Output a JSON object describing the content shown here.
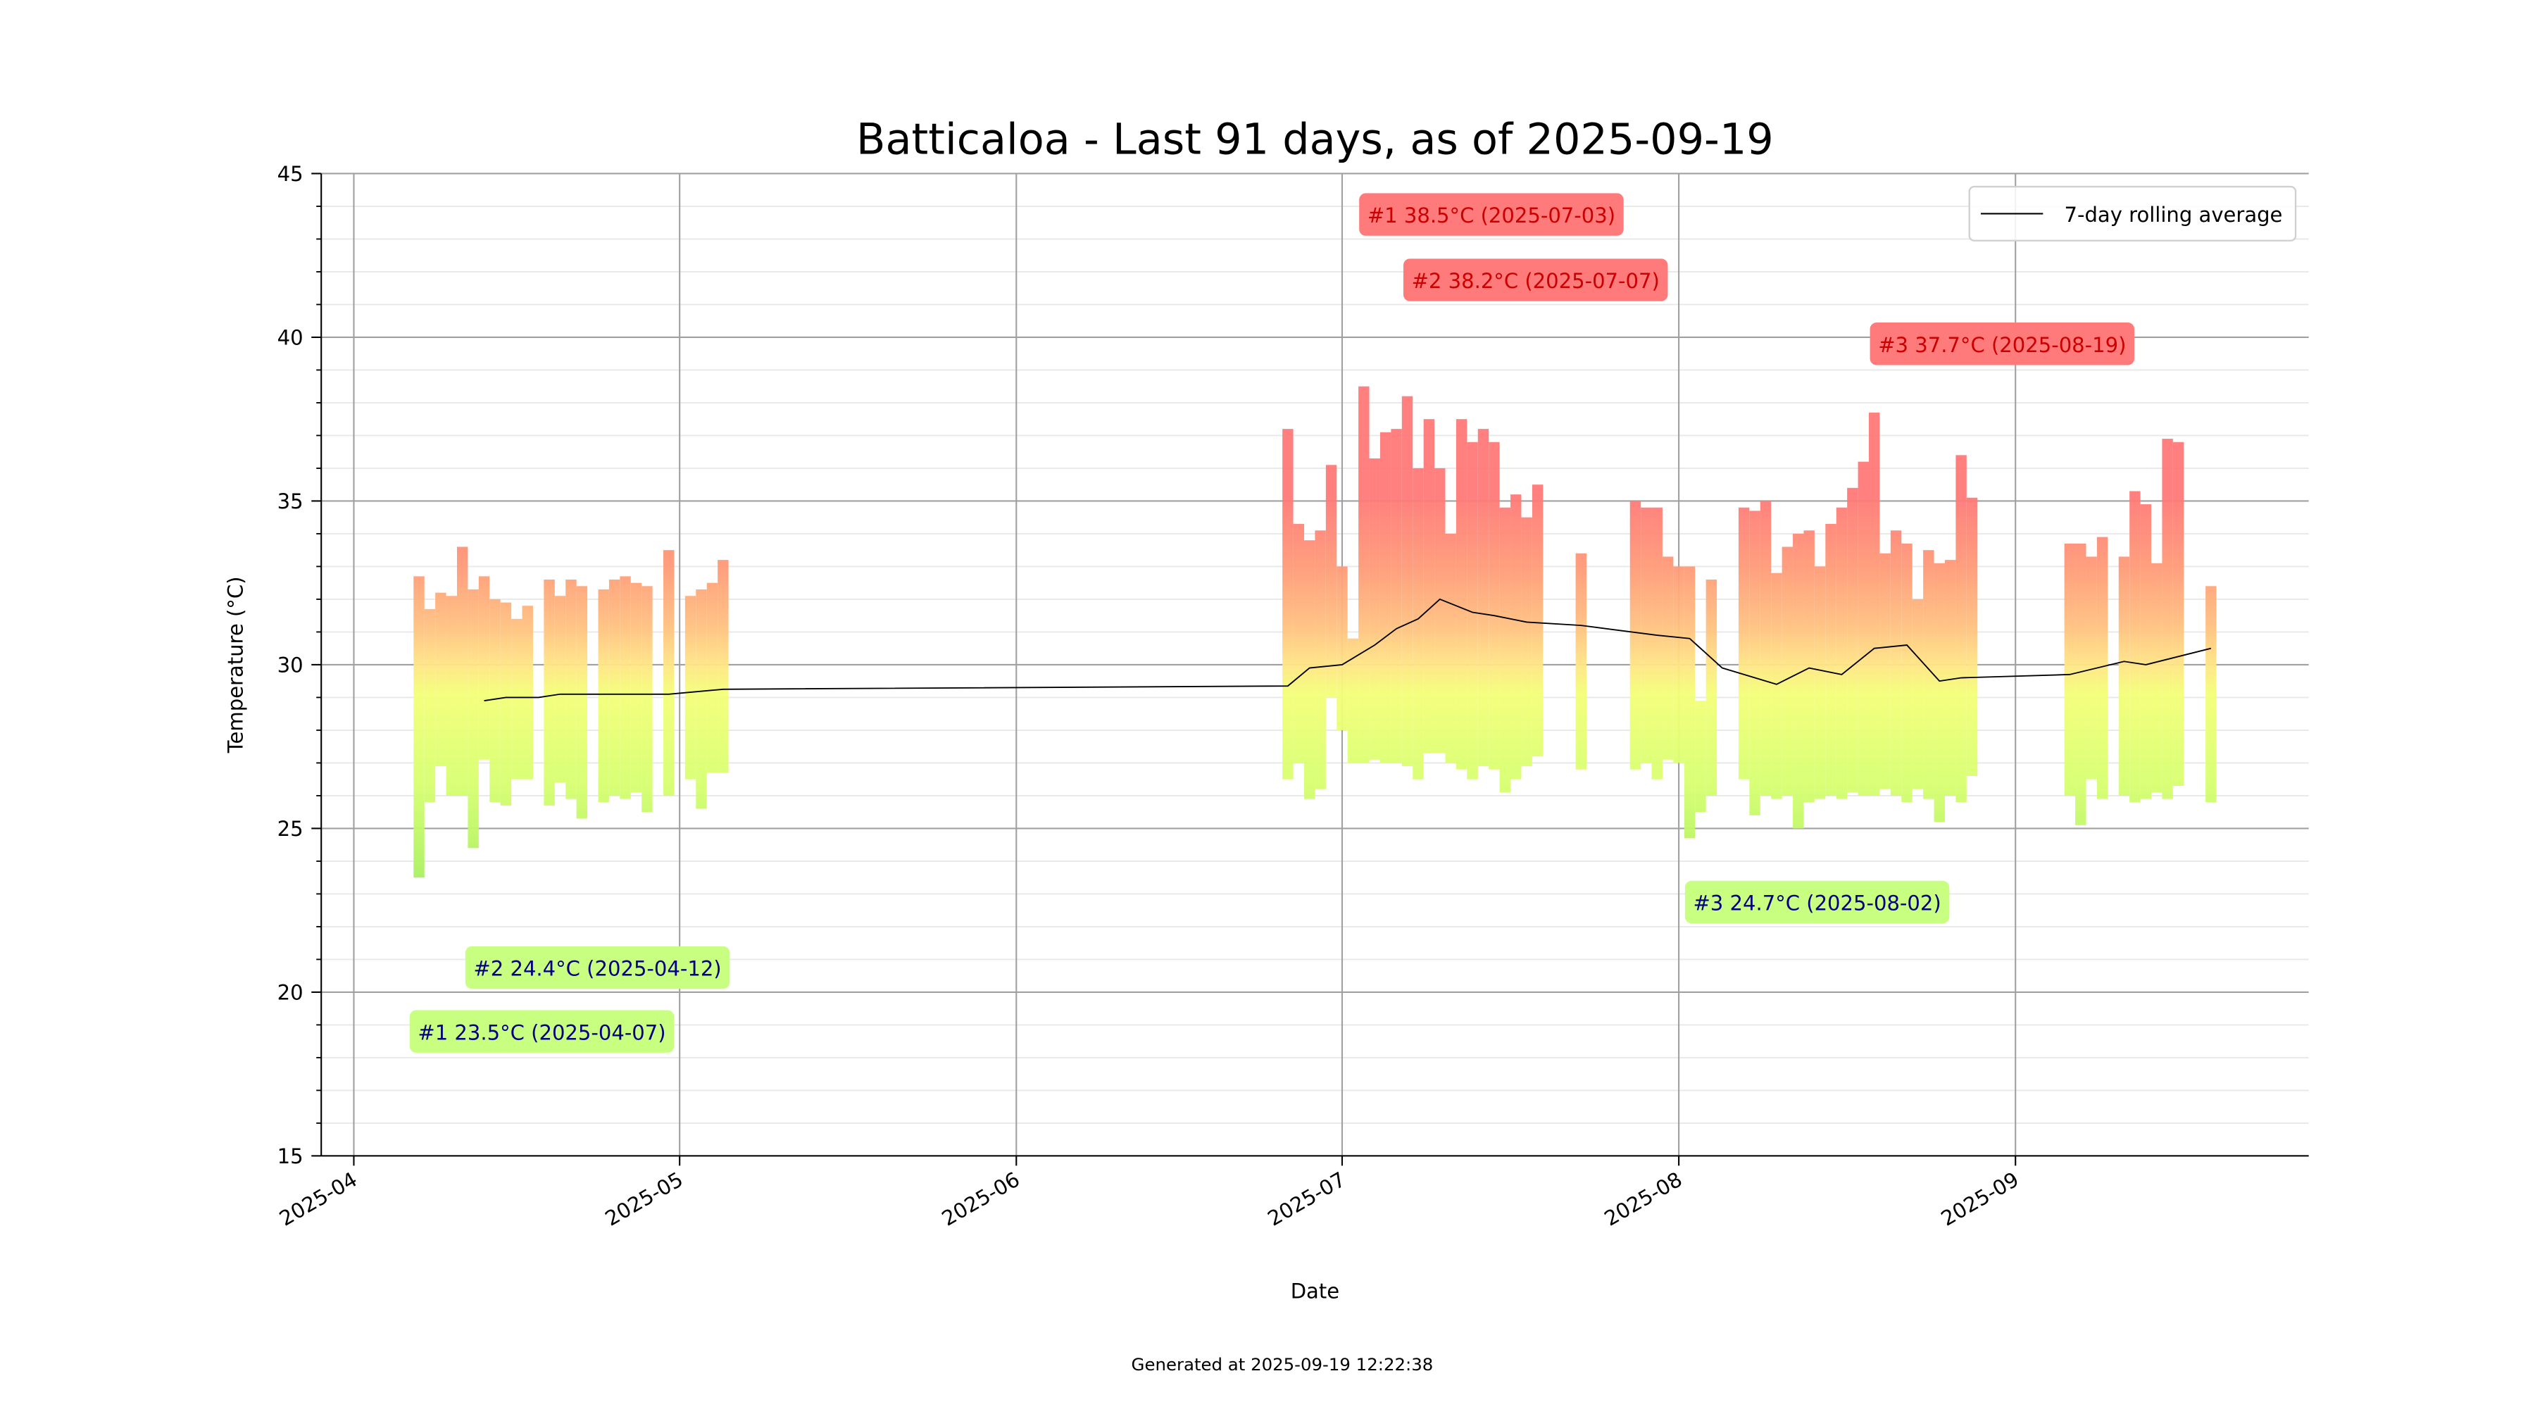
{
  "chart_data": {
    "type": "range_bar",
    "title": "Batticaloa - Last 91 days, as of 2025-09-19",
    "x_label": "Date",
    "y_label": "Temperature (°C)",
    "footer": "Generated at 2025-09-19 12:22:38",
    "x": [
      "2025-04-07",
      "2025-04-08",
      "2025-04-09",
      "2025-04-10",
      "2025-04-11",
      "2025-04-12",
      "2025-04-13",
      "2025-04-14",
      "2025-04-15",
      "2025-04-16",
      "2025-04-17",
      "2025-04-19",
      "2025-04-20",
      "2025-04-21",
      "2025-04-22",
      "2025-04-24",
      "2025-04-25",
      "2025-04-26",
      "2025-04-27",
      "2025-04-28",
      "2025-04-30",
      "2025-05-02",
      "2025-05-03",
      "2025-05-04",
      "2025-05-05",
      "2025-06-26",
      "2025-06-27",
      "2025-06-28",
      "2025-06-29",
      "2025-06-30",
      "2025-07-01",
      "2025-07-02",
      "2025-07-03",
      "2025-07-04",
      "2025-07-05",
      "2025-07-06",
      "2025-07-07",
      "2025-07-08",
      "2025-07-09",
      "2025-07-10",
      "2025-07-11",
      "2025-07-12",
      "2025-07-13",
      "2025-07-14",
      "2025-07-15",
      "2025-07-16",
      "2025-07-17",
      "2025-07-18",
      "2025-07-19",
      "2025-07-23",
      "2025-07-28",
      "2025-07-29",
      "2025-07-30",
      "2025-07-31",
      "2025-08-01",
      "2025-08-02",
      "2025-08-03",
      "2025-08-04",
      "2025-08-07",
      "2025-08-08",
      "2025-08-09",
      "2025-08-10",
      "2025-08-11",
      "2025-08-12",
      "2025-08-13",
      "2025-08-14",
      "2025-08-15",
      "2025-08-16",
      "2025-08-17",
      "2025-08-18",
      "2025-08-19",
      "2025-08-20",
      "2025-08-21",
      "2025-08-22",
      "2025-08-23",
      "2025-08-24",
      "2025-08-25",
      "2025-08-26",
      "2025-08-27",
      "2025-08-28",
      "2025-09-06",
      "2025-09-07",
      "2025-09-08",
      "2025-09-09",
      "2025-09-11",
      "2025-09-12",
      "2025-09-13",
      "2025-09-14",
      "2025-09-15",
      "2025-09-16",
      "2025-09-19"
    ],
    "max_values": [
      32.7,
      31.7,
      32.2,
      32.1,
      33.6,
      32.3,
      32.7,
      32.0,
      31.9,
      31.4,
      31.8,
      32.6,
      32.1,
      32.6,
      32.4,
      32.3,
      32.6,
      32.7,
      32.5,
      32.4,
      33.5,
      32.1,
      32.3,
      32.5,
      33.2,
      37.2,
      34.3,
      33.8,
      34.1,
      36.1,
      33.0,
      30.8,
      38.5,
      36.3,
      37.1,
      37.2,
      38.2,
      36.0,
      37.5,
      36.0,
      34.0,
      37.5,
      36.8,
      37.2,
      36.8,
      34.8,
      35.2,
      34.5,
      35.5,
      33.4,
      35.0,
      34.8,
      34.8,
      33.3,
      33.0,
      33.0,
      28.9,
      32.6,
      34.8,
      34.7,
      35.0,
      32.8,
      33.6,
      34.0,
      34.1,
      33.0,
      34.3,
      34.8,
      35.4,
      36.2,
      37.7,
      33.4,
      34.1,
      33.7,
      32.0,
      33.5,
      33.1,
      33.2,
      36.4,
      35.1,
      33.7,
      33.7,
      33.3,
      33.9,
      33.3,
      35.3,
      34.9,
      33.1,
      36.9,
      36.8,
      32.4
    ],
    "min_values": [
      23.5,
      25.8,
      26.9,
      26.0,
      26.0,
      24.4,
      27.1,
      25.8,
      25.7,
      26.5,
      26.5,
      25.7,
      26.4,
      25.9,
      25.3,
      25.8,
      26.0,
      25.9,
      26.1,
      25.5,
      26.0,
      26.5,
      25.6,
      26.7,
      26.7,
      26.5,
      27.0,
      25.9,
      26.2,
      29.0,
      28.0,
      27.0,
      27.0,
      27.1,
      27.0,
      27.0,
      26.9,
      26.5,
      27.3,
      27.3,
      27.0,
      26.8,
      26.5,
      26.9,
      26.8,
      26.1,
      26.5,
      26.9,
      27.2,
      26.8,
      26.8,
      27.0,
      26.5,
      27.1,
      27.0,
      24.7,
      25.5,
      26.0,
      26.5,
      25.4,
      26.0,
      25.9,
      26.0,
      25.0,
      25.8,
      25.9,
      26.0,
      25.9,
      26.1,
      26.0,
      26.0,
      26.2,
      26.0,
      25.8,
      26.2,
      25.9,
      25.2,
      26.0,
      25.8,
      26.6,
      26.0,
      25.1,
      26.5,
      25.9,
      26.0,
      25.8,
      25.9,
      26.1,
      25.9,
      26.3,
      25.8
    ],
    "rolling": {
      "name": "7-day rolling average",
      "color": "#000000",
      "x": [
        "2025-04-13",
        "2025-04-15",
        "2025-04-18",
        "2025-04-20",
        "2025-04-25",
        "2025-04-30",
        "2025-05-05",
        "2025-06-26",
        "2025-06-28",
        "2025-07-01",
        "2025-07-04",
        "2025-07-06",
        "2025-07-08",
        "2025-07-10",
        "2025-07-13",
        "2025-07-15",
        "2025-07-18",
        "2025-07-23",
        "2025-07-30",
        "2025-08-02",
        "2025-08-05",
        "2025-08-10",
        "2025-08-13",
        "2025-08-16",
        "2025-08-19",
        "2025-08-22",
        "2025-08-25",
        "2025-08-27",
        "2025-09-06",
        "2025-09-11",
        "2025-09-13",
        "2025-09-19"
      ],
      "values": [
        28.9,
        29.0,
        29.0,
        29.1,
        29.1,
        29.1,
        29.25,
        29.35,
        29.9,
        30.0,
        30.6,
        31.1,
        31.4,
        32.0,
        31.6,
        31.5,
        31.3,
        31.2,
        30.9,
        30.8,
        29.9,
        29.4,
        29.9,
        29.7,
        30.5,
        30.6,
        29.5,
        29.6,
        29.7,
        30.1,
        30.0,
        30.5
      ]
    },
    "max_labels": [
      "#1 38.5°C (2025-07-03)",
      "#2 38.2°C (2025-07-07)",
      "#3 37.7°C (2025-08-19)"
    ],
    "min_labels": [
      "#1 23.5°C (2025-04-07)",
      "#2 24.4°C (2025-04-12)",
      "#3 24.7°C (2025-08-02)"
    ],
    "xlim": [
      "2025-03-29",
      "2025-09-28"
    ],
    "xticks": [
      {
        "value": "2025-04-01",
        "label": "2025-04"
      },
      {
        "value": "2025-05-01",
        "label": "2025-05"
      },
      {
        "value": "2025-06-01",
        "label": "2025-06"
      },
      {
        "value": "2025-07-01",
        "label": "2025-07"
      },
      {
        "value": "2025-08-01",
        "label": "2025-08"
      },
      {
        "value": "2025-09-01",
        "label": "2025-09"
      }
    ],
    "ylim": [
      15,
      45
    ],
    "yticks": [
      15,
      20,
      25,
      30,
      35,
      40,
      45
    ],
    "yminorticks": [
      16,
      17,
      18,
      19,
      21,
      22,
      23,
      24,
      26,
      27,
      28,
      29,
      31,
      32,
      33,
      34,
      36,
      37,
      38,
      39,
      41,
      42,
      43,
      44
    ],
    "grid": true,
    "legend": "upper right"
  }
}
